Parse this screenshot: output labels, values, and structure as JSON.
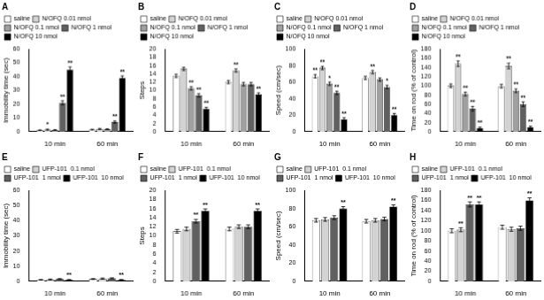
{
  "chart_data": [
    {
      "type": "bar",
      "title": "A",
      "ylabel": "Immobility time (sec)",
      "categories": [
        "10 min",
        "60 min"
      ],
      "series": [
        {
          "name": "saline",
          "color": "#FFFFFF",
          "values": [
            1.0,
            1.5
          ],
          "errors": [
            0.3,
            0.3
          ],
          "annotations": [
            null,
            null
          ]
        },
        {
          "name": "N/OFQ 0.01 nmol",
          "color": "#D3D3D3",
          "values": [
            1.5,
            2.0
          ],
          "errors": [
            0.4,
            0.4
          ],
          "annotations": [
            "*",
            null
          ]
        },
        {
          "name": "N/OFQ 0.1 nmol",
          "color": "#A0A0A0",
          "values": [
            1.2,
            1.8
          ],
          "errors": [
            0.3,
            0.3
          ],
          "annotations": [
            null,
            null
          ]
        },
        {
          "name": "N/OFQ 1 nmol",
          "color": "#606060",
          "values": [
            21.0,
            7.0
          ],
          "errors": [
            1.5,
            0.8
          ],
          "annotations": [
            "**",
            "**"
          ]
        },
        {
          "name": "N/OFQ 10 nmol",
          "color": "#000000",
          "values": [
            45.0,
            39.0
          ],
          "errors": [
            2.0,
            1.5
          ],
          "annotations": [
            "**",
            "**"
          ]
        }
      ],
      "ylim": [
        0,
        60
      ],
      "yticks": [
        0,
        10,
        20,
        30,
        40,
        50,
        60
      ],
      "legend": "upper left",
      "grid": false
    },
    {
      "type": "bar",
      "title": "B",
      "ylabel": "Steps",
      "categories": [
        "10 min",
        "60 min"
      ],
      "series": [
        {
          "name": "saline",
          "color": "#FFFFFF",
          "values": [
            13.5,
            12.0
          ],
          "errors": [
            0.4,
            0.4
          ],
          "annotations": [
            null,
            null
          ]
        },
        {
          "name": "N/OFQ 0.01 nmol",
          "color": "#D3D3D3",
          "values": [
            15.2,
            14.8
          ],
          "errors": [
            0.4,
            0.4
          ],
          "annotations": [
            null,
            "**"
          ]
        },
        {
          "name": "N/OFQ 0.1 nmol",
          "color": "#A0A0A0",
          "values": [
            10.5,
            11.5
          ],
          "errors": [
            0.4,
            0.4
          ],
          "annotations": [
            "**",
            null
          ]
        },
        {
          "name": "N/OFQ 1 nmol",
          "color": "#606060",
          "values": [
            8.8,
            11.5
          ],
          "errors": [
            0.4,
            0.4
          ],
          "annotations": [
            "**",
            null
          ]
        },
        {
          "name": "N/OFQ 10 nmol",
          "color": "#000000",
          "values": [
            5.5,
            9.0
          ],
          "errors": [
            0.4,
            0.4
          ],
          "annotations": [
            "**",
            "**"
          ]
        }
      ],
      "ylim": [
        0,
        20
      ],
      "yticks": [
        0,
        2,
        4,
        6,
        8,
        10,
        12,
        14,
        16,
        18,
        20
      ],
      "legend": "upper left",
      "grid": false
    },
    {
      "type": "bar",
      "title": "C",
      "ylabel": "Speed (cm/sec)",
      "categories": [
        "10 min",
        "60 min"
      ],
      "series": [
        {
          "name": "saline",
          "color": "#FFFFFF",
          "values": [
            67.0,
            65.0
          ],
          "errors": [
            2.0,
            2.0
          ],
          "annotations": [
            "**",
            null
          ]
        },
        {
          "name": "N/OFQ 0.01 nmol",
          "color": "#D3D3D3",
          "values": [
            77.0,
            72.0
          ],
          "errors": [
            2.0,
            2.0
          ],
          "annotations": [
            "**",
            "**"
          ]
        },
        {
          "name": "N/OFQ 0.1 nmol",
          "color": "#A0A0A0",
          "values": [
            58.0,
            63.0
          ],
          "errors": [
            2.0,
            2.0
          ],
          "annotations": [
            "*",
            null
          ]
        },
        {
          "name": "N/OFQ 1 nmol",
          "color": "#606060",
          "values": [
            47.0,
            54.0
          ],
          "errors": [
            2.0,
            2.0
          ],
          "annotations": [
            "**",
            "*"
          ]
        },
        {
          "name": "N/OFQ 10 nmol",
          "color": "#000000",
          "values": [
            15.0,
            20.0
          ],
          "errors": [
            2.0,
            2.0
          ],
          "annotations": [
            "**",
            "**"
          ]
        }
      ],
      "ylim": [
        0,
        100
      ],
      "yticks": [
        0,
        20,
        40,
        60,
        80,
        100
      ],
      "legend": "upper left",
      "grid": false
    },
    {
      "type": "bar",
      "title": "D",
      "ylabel": "Time on rod (% of control)",
      "categories": [
        "10 min",
        "60 min"
      ],
      "series": [
        {
          "name": "saline",
          "color": "#FFFFFF",
          "values": [
            100.0,
            99.0
          ],
          "errors": [
            4.0,
            4.0
          ],
          "annotations": [
            null,
            null
          ]
        },
        {
          "name": "N/OFQ 0.01 nmol",
          "color": "#D3D3D3",
          "values": [
            148.0,
            143.0
          ],
          "errors": [
            6.0,
            6.0
          ],
          "annotations": [
            "**",
            "**"
          ]
        },
        {
          "name": "N/OFQ 0.1 nmol",
          "color": "#A0A0A0",
          "values": [
            82.0,
            89.0
          ],
          "errors": [
            4.0,
            4.0
          ],
          "annotations": [
            "**",
            "**"
          ]
        },
        {
          "name": "N/OFQ 1 nmol",
          "color": "#606060",
          "values": [
            50.0,
            60.0
          ],
          "errors": [
            5.0,
            5.0
          ],
          "annotations": [
            "**",
            "**"
          ]
        },
        {
          "name": "N/OFQ 10 nmol",
          "color": "#000000",
          "values": [
            8.0,
            10.0
          ],
          "errors": [
            2.0,
            2.0
          ],
          "annotations": [
            "**",
            "**"
          ]
        }
      ],
      "ylim": [
        0,
        180
      ],
      "yticks": [
        0,
        20,
        40,
        60,
        80,
        100,
        120,
        140,
        160,
        180
      ],
      "legend": "upper left",
      "grid": false
    },
    {
      "type": "bar",
      "title": "E",
      "ylabel": "Immobility time (sec)",
      "categories": [
        "10 min",
        "60 min"
      ],
      "series": [
        {
          "name": "saline",
          "color": "#FFFFFF",
          "values": [
            1.0,
            1.5
          ],
          "errors": [
            0.2,
            0.3
          ],
          "annotations": [
            null,
            null
          ]
        },
        {
          "name": "UFP-101  0.1 nmol",
          "color": "#D3D3D3",
          "values": [
            1.2,
            1.8
          ],
          "errors": [
            0.3,
            0.4
          ],
          "annotations": [
            null,
            null
          ]
        },
        {
          "name": "UFP-101  1 nmol",
          "color": "#606060",
          "values": [
            1.5,
            2.0
          ],
          "errors": [
            0.3,
            0.3
          ],
          "annotations": [
            null,
            null
          ]
        },
        {
          "name": "UFP-101  10 nmol",
          "color": "#000000",
          "values": [
            1.0,
            1.0
          ],
          "errors": [
            0.2,
            0.2
          ],
          "annotations": [
            "**",
            "**"
          ]
        }
      ],
      "ylim": [
        0,
        60
      ],
      "yticks": [
        0,
        10,
        20,
        30,
        40,
        50,
        60
      ],
      "legend": "upper left",
      "grid": false
    },
    {
      "type": "bar",
      "title": "F",
      "ylabel": "Steps",
      "categories": [
        "10 min",
        "60 min"
      ],
      "series": [
        {
          "name": "saline",
          "color": "#FFFFFF",
          "values": [
            11.0,
            11.5
          ],
          "errors": [
            0.4,
            0.4
          ],
          "annotations": [
            null,
            null
          ]
        },
        {
          "name": "UFP-101  0.1 nmol",
          "color": "#D3D3D3",
          "values": [
            11.5,
            12.0
          ],
          "errors": [
            0.4,
            0.4
          ],
          "annotations": [
            null,
            null
          ]
        },
        {
          "name": "UFP-101  1 nmol",
          "color": "#606060",
          "values": [
            13.2,
            12.0
          ],
          "errors": [
            0.4,
            0.4
          ],
          "annotations": [
            "**",
            null
          ]
        },
        {
          "name": "UFP-101  10 nmol",
          "color": "#000000",
          "values": [
            15.5,
            15.5
          ],
          "errors": [
            0.4,
            0.4
          ],
          "annotations": [
            "**",
            "**"
          ]
        }
      ],
      "ylim": [
        0,
        20
      ],
      "yticks": [
        0,
        2,
        4,
        6,
        8,
        10,
        12,
        14,
        16,
        18,
        20
      ],
      "legend": "upper left",
      "grid": false
    },
    {
      "type": "bar",
      "title": "G",
      "ylabel": "Speed (cm/sec)",
      "categories": [
        "10 min",
        "60 min"
      ],
      "series": [
        {
          "name": "saline",
          "color": "#FFFFFF",
          "values": [
            67.0,
            66.0
          ],
          "errors": [
            2.0,
            2.0
          ],
          "annotations": [
            null,
            null
          ]
        },
        {
          "name": "UFP-101  0.1 nmol",
          "color": "#D3D3D3",
          "values": [
            68.0,
            67.0
          ],
          "errors": [
            2.0,
            2.0
          ],
          "annotations": [
            null,
            null
          ]
        },
        {
          "name": "UFP-101  1 nmol",
          "color": "#606060",
          "values": [
            70.0,
            68.5
          ],
          "errors": [
            2.0,
            2.0
          ],
          "annotations": [
            null,
            null
          ]
        },
        {
          "name": "UFP-101  10 nmol",
          "color": "#000000",
          "values": [
            80.0,
            82.0
          ],
          "errors": [
            2.0,
            2.0
          ],
          "annotations": [
            "**",
            "**"
          ]
        }
      ],
      "ylim": [
        0,
        100
      ],
      "yticks": [
        0,
        20,
        40,
        60,
        80,
        100
      ],
      "legend": "upper left",
      "grid": false
    },
    {
      "type": "bar",
      "title": "H",
      "ylabel": "Time on rod (% of control)",
      "categories": [
        "10 min",
        "60 min"
      ],
      "series": [
        {
          "name": "saline",
          "color": "#FFFFFF",
          "values": [
            100.0,
            107.0
          ],
          "errors": [
            4.0,
            4.0
          ],
          "annotations": [
            null,
            null
          ]
        },
        {
          "name": "UFP-101  0.1 nmol",
          "color": "#D3D3D3",
          "values": [
            102.0,
            103.0
          ],
          "errors": [
            4.0,
            4.0
          ],
          "annotations": [
            "**",
            null
          ]
        },
        {
          "name": "UFP-101  1 nmol",
          "color": "#606060",
          "values": [
            152.0,
            105.0
          ],
          "errors": [
            5.0,
            4.0
          ],
          "annotations": [
            "**",
            null
          ]
        },
        {
          "name": "UFP-101  10 nmol",
          "color": "#000000",
          "values": [
            152.0,
            160.0
          ],
          "errors": [
            5.0,
            5.0
          ],
          "annotations": [
            "**",
            "**"
          ]
        }
      ],
      "ylim": [
        0,
        180
      ],
      "yticks": [
        0,
        20,
        40,
        60,
        80,
        100,
        120,
        140,
        160,
        180
      ],
      "legend": "upper left",
      "grid": false
    }
  ]
}
